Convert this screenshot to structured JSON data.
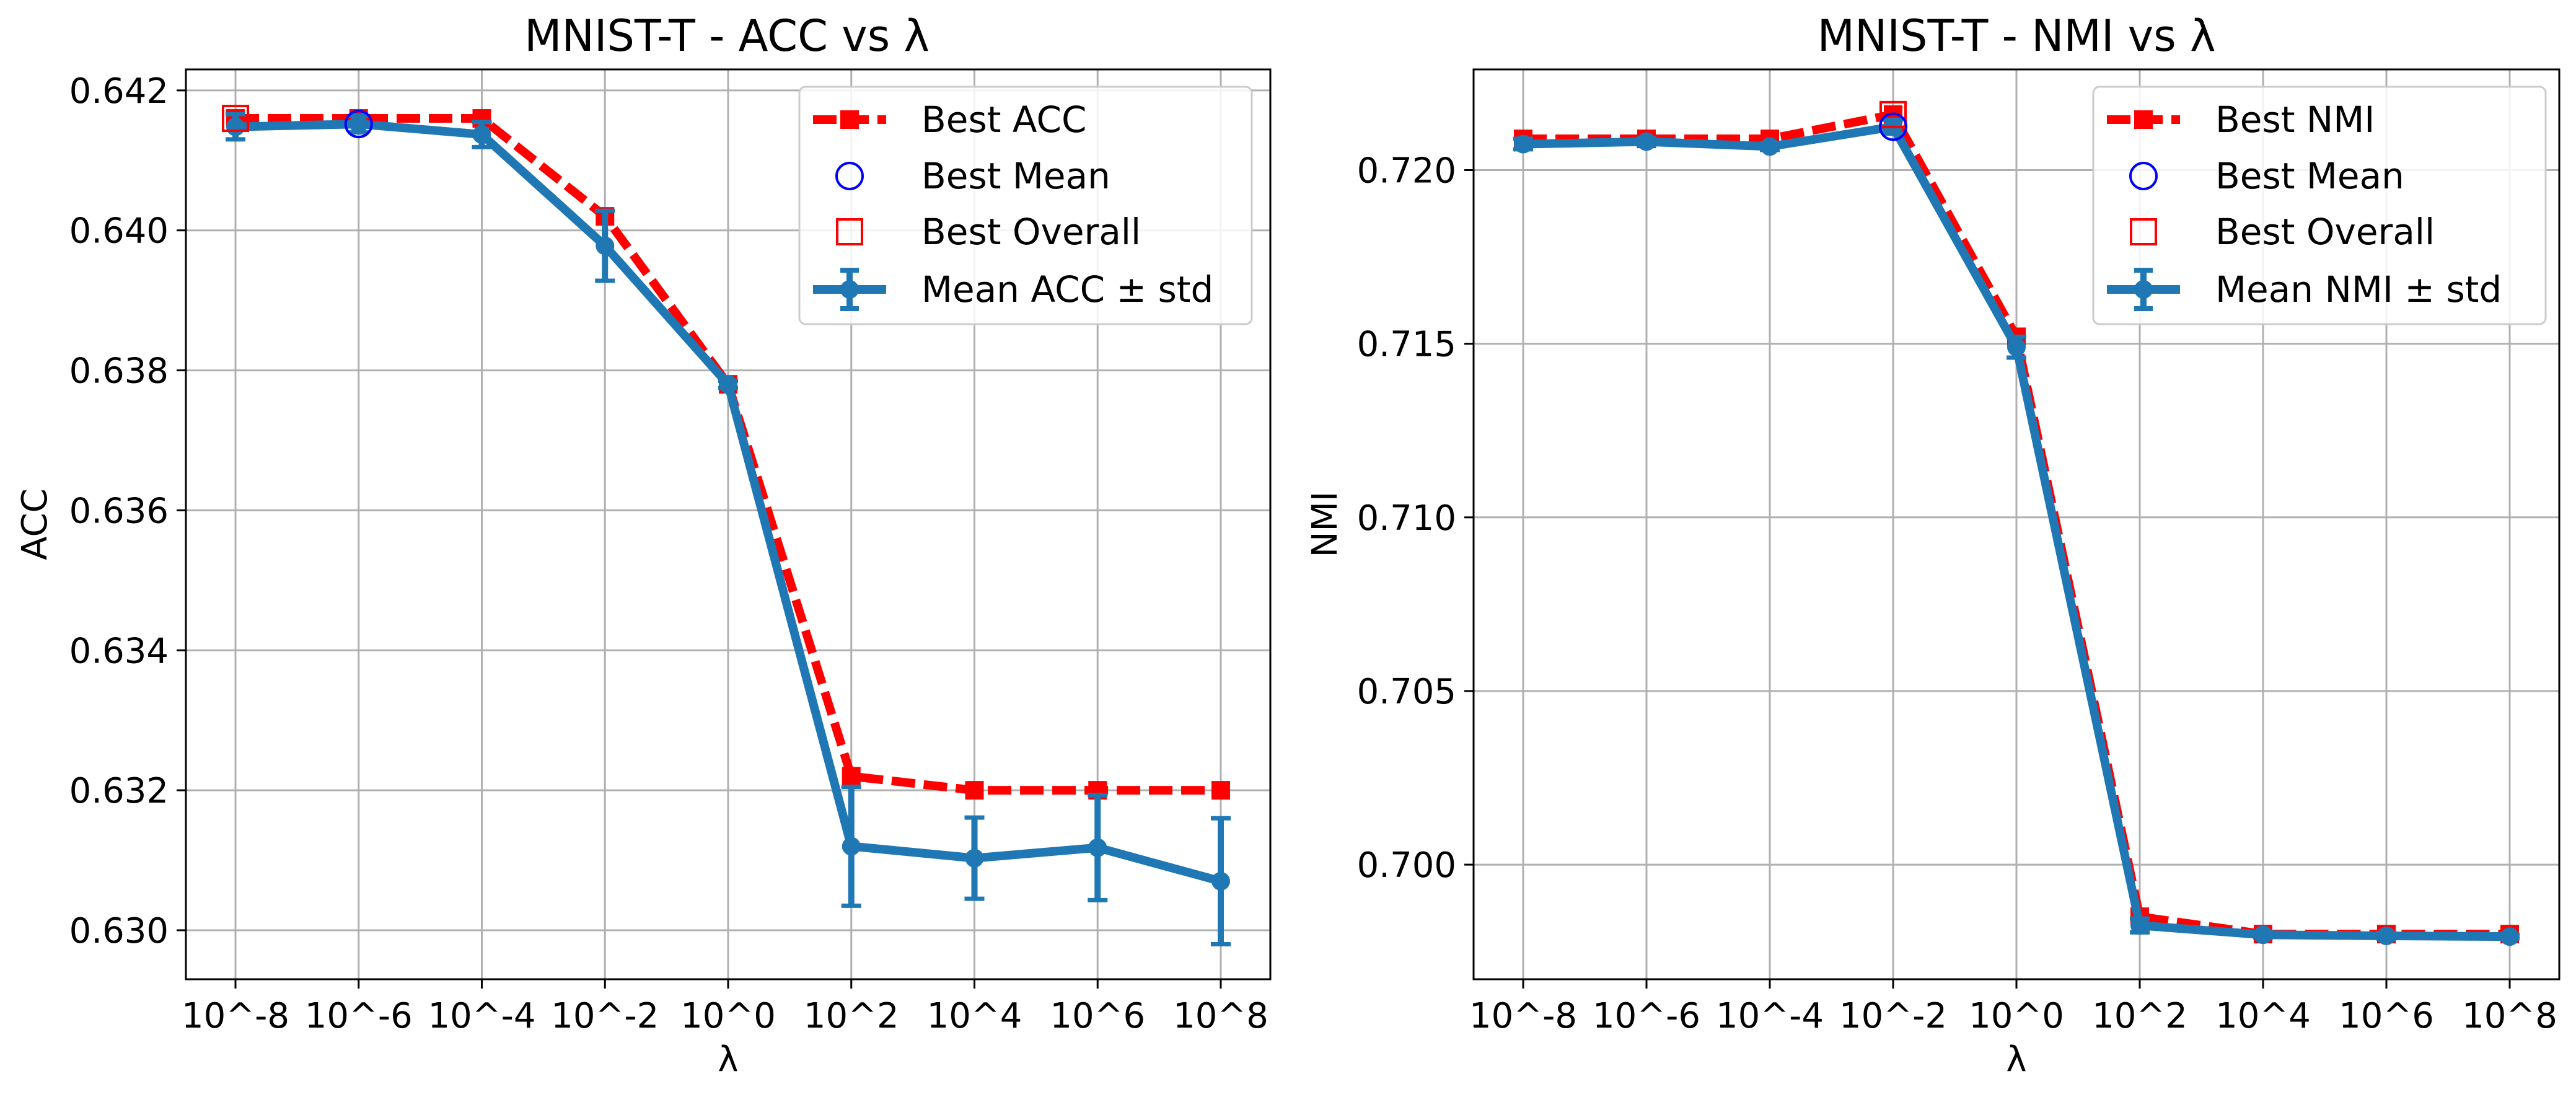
{
  "charts": [
    {
      "title": "MNIST-T - ACC vs λ",
      "xlabel": "λ",
      "ylabel": "ACC",
      "y_ticks": [
        "0.630",
        "0.632",
        "0.634",
        "0.636",
        "0.638",
        "0.640",
        "0.642"
      ],
      "legend": {
        "best_line": "Best ACC",
        "best_mean": "Best Mean",
        "best_overall": "Best Overall",
        "mean_std": "Mean ACC ± std"
      }
    },
    {
      "title": "MNIST-T - NMI vs λ",
      "xlabel": "λ",
      "ylabel": "NMI",
      "y_ticks": [
        "0.700",
        "0.705",
        "0.710",
        "0.715",
        "0.720"
      ],
      "legend": {
        "best_line": "Best NMI",
        "best_mean": "Best Mean",
        "best_overall": "Best Overall",
        "mean_std": "Mean NMI ± std"
      }
    }
  ],
  "chart_data": [
    {
      "type": "line",
      "title": "MNIST-T - ACC vs λ",
      "xlabel": "λ",
      "ylabel": "ACC",
      "categories": [
        "10^-8",
        "10^-6",
        "10^-4",
        "10^-2",
        "10^0",
        "10^2",
        "10^4",
        "10^6",
        "10^8"
      ],
      "ylim": [
        0.6293,
        0.6423
      ],
      "y_ticks": [
        0.63,
        0.632,
        0.634,
        0.636,
        0.638,
        0.64,
        0.642
      ],
      "grid": true,
      "legend_position": "upper right",
      "series": [
        {
          "name": "Best ACC",
          "style": "dashed",
          "marker": "square",
          "color": "#ff0000",
          "values": [
            0.6416,
            0.6416,
            0.6416,
            0.6402,
            0.6378,
            0.6322,
            0.632,
            0.632,
            0.632
          ]
        },
        {
          "name": "Mean ACC ± std",
          "style": "solid",
          "marker": "circle",
          "color": "#1f77b4",
          "values": [
            0.64148,
            0.64152,
            0.64137,
            0.63978,
            0.6378,
            0.6312,
            0.63103,
            0.63118,
            0.6307
          ],
          "std": [
            0.00018,
            0.00012,
            0.00018,
            0.0005,
            5e-05,
            0.00085,
            0.00058,
            0.00075,
            0.0009
          ]
        }
      ],
      "best_mean": {
        "name": "Best Mean",
        "category": "10^-6",
        "value": 0.64152,
        "color": "#0000ff"
      },
      "best_overall": {
        "name": "Best Overall",
        "category": "10^-8",
        "value": 0.6416,
        "color": "#ff0000"
      }
    },
    {
      "type": "line",
      "title": "MNIST-T - NMI vs λ",
      "xlabel": "λ",
      "ylabel": "NMI",
      "categories": [
        "10^-8",
        "10^-6",
        "10^-4",
        "10^-2",
        "10^0",
        "10^2",
        "10^4",
        "10^6",
        "10^8"
      ],
      "ylim": [
        0.6967,
        0.7229
      ],
      "y_ticks": [
        0.7,
        0.705,
        0.71,
        0.715,
        0.72
      ],
      "grid": true,
      "legend_position": "upper right",
      "series": [
        {
          "name": "Best NMI",
          "style": "dashed",
          "marker": "square",
          "color": "#ff0000",
          "values": [
            0.7209,
            0.7209,
            0.7209,
            0.7216,
            0.7152,
            0.6985,
            0.698,
            0.698,
            0.698
          ]
        },
        {
          "name": "Mean NMI ± std",
          "style": "solid",
          "marker": "circle",
          "color": "#1f77b4",
          "values": [
            0.72075,
            0.72082,
            0.72068,
            0.72125,
            0.7149,
            0.69825,
            0.69798,
            0.69795,
            0.69793
          ],
          "std": [
            0.00015,
            0.0001,
            0.0001,
            0.0002,
            0.0003,
            0.0002,
            8e-05,
            8e-05,
            5e-05
          ]
        }
      ],
      "best_mean": {
        "name": "Best Mean",
        "category": "10^-2",
        "value": 0.72125,
        "color": "#0000ff"
      },
      "best_overall": {
        "name": "Best Overall",
        "category": "10^-2",
        "value": 0.7216,
        "color": "#ff0000"
      }
    }
  ]
}
